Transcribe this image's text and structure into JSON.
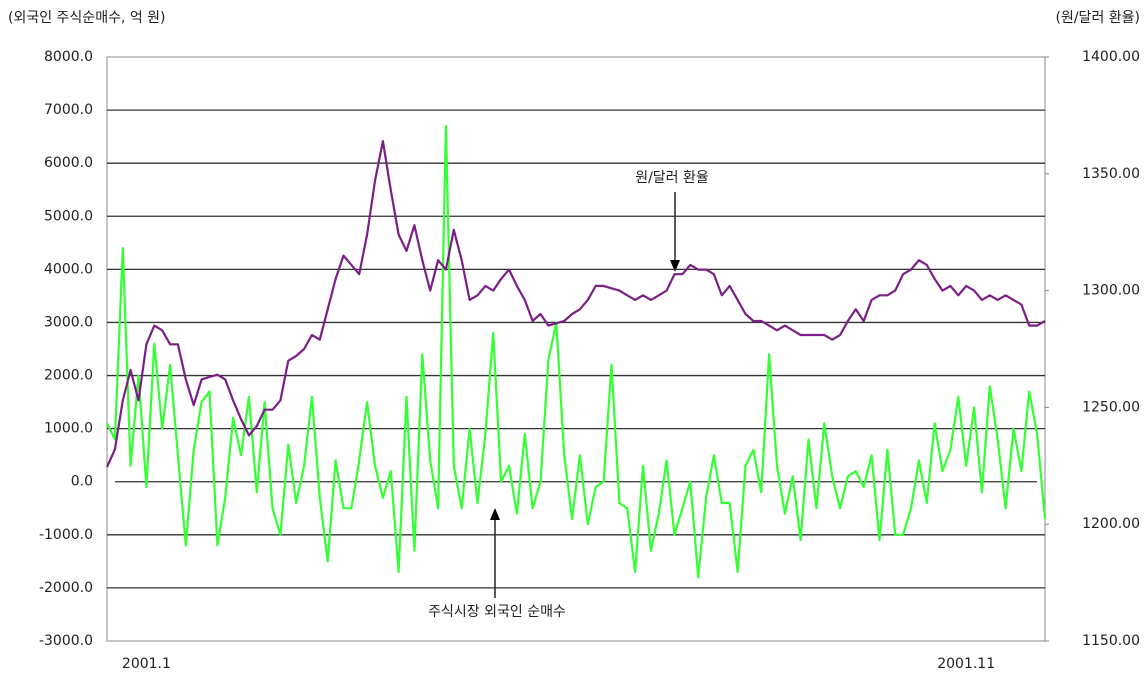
{
  "chart_data": {
    "type": "line",
    "y_label": "(외국인 주식순매수, 억 원)",
    "y2_label": "(원/달러 환율)",
    "annotations": [
      "원/달러 환율",
      "주식시장 외국인 순매수"
    ],
    "categories": [
      null,
      null,
      null,
      null,
      null,
      "2001.1",
      null,
      null,
      null,
      null,
      null,
      null,
      null,
      null,
      null,
      null,
      null,
      null,
      null,
      null,
      null,
      null,
      null,
      null,
      null,
      null,
      null,
      null,
      null,
      null,
      null,
      null,
      null,
      null,
      null,
      null,
      null,
      null,
      null,
      null,
      null,
      null,
      null,
      null,
      null,
      null,
      null,
      null,
      null,
      null,
      null,
      null,
      null,
      null,
      null,
      null,
      null,
      null,
      null,
      null,
      null,
      null,
      null,
      null,
      null,
      null,
      null,
      null,
      null,
      null,
      null,
      null,
      null,
      null,
      null,
      null,
      null,
      null,
      null,
      null,
      null,
      null,
      null,
      null,
      null,
      null,
      null,
      null,
      null,
      null,
      null,
      null,
      null,
      null,
      null,
      null,
      null,
      null,
      null,
      null,
      null,
      null,
      null,
      null,
      null,
      null,
      null,
      null,
      null,
      "2001.11",
      null,
      null,
      null,
      null,
      null,
      null,
      null,
      null,
      null,
      null
    ],
    "ylim": [
      -3000,
      8000
    ],
    "yticks": [
      {
        "value": -3000,
        "label": "-3000.0"
      },
      {
        "value": -2000,
        "label": "-2000.0"
      },
      {
        "value": -1000,
        "label": "-1000.0"
      },
      {
        "value": 0,
        "label": "0.0"
      },
      {
        "value": 1000,
        "label": "1000.0"
      },
      {
        "value": 2000,
        "label": "2000.0"
      },
      {
        "value": 3000,
        "label": "3000.0"
      },
      {
        "value": 4000,
        "label": "4000.0"
      },
      {
        "value": 5000,
        "label": "5000.0"
      },
      {
        "value": 6000,
        "label": "6000.0"
      },
      {
        "value": 7000,
        "label": "7000.0"
      },
      {
        "value": 8000,
        "label": "8000.0"
      }
    ],
    "y2lim": [
      1150,
      1400
    ],
    "y2ticks": [
      {
        "value": 1150,
        "label": "1150.00"
      },
      {
        "value": 1200,
        "label": "1200.00"
      },
      {
        "value": 1250,
        "label": "1250.00"
      },
      {
        "value": 1300,
        "label": "1300.00"
      },
      {
        "value": 1350,
        "label": "1350.00"
      },
      {
        "value": 1400,
        "label": "1400.00"
      }
    ],
    "grid": true,
    "series": [
      {
        "name": "주식시장 외국인 순매수",
        "color": "#33ff33",
        "values": [
          1100,
          800,
          4400,
          300,
          2000,
          -100,
          2600,
          1000,
          2200,
          500,
          -1200,
          600,
          1500,
          1700,
          -1200,
          -300,
          1200,
          500,
          1600,
          -200,
          1500,
          -500,
          -1000,
          700,
          -400,
          300,
          1600,
          -300,
          -1500,
          400,
          -500,
          -500,
          400,
          1500,
          300,
          -300,
          200,
          -1700,
          1600,
          -1300,
          2400,
          400,
          -500,
          6700,
          300,
          -500,
          1000,
          -400,
          900,
          2800,
          0,
          300,
          -600,
          900,
          -500,
          0,
          2300,
          3000,
          500,
          -700,
          500,
          -800,
          -100,
          0,
          2200,
          -400,
          -500,
          -1700,
          300,
          -1300,
          -600,
          400,
          -1000,
          -500,
          0,
          -1800,
          -300,
          500,
          -400,
          -400,
          -1700,
          300,
          600,
          -200,
          2400,
          300,
          -600,
          100,
          -1100,
          800,
          -500,
          1100,
          100,
          -500,
          100,
          200,
          -100,
          500,
          -1100,
          600,
          -1000,
          -1000,
          -500,
          400,
          -400,
          1100,
          200,
          600,
          1600,
          300,
          1400,
          -200,
          1800,
          800,
          -500,
          1000,
          200,
          1700,
          900,
          -700
        ]
      },
      {
        "name": "원/달러 환율",
        "color": "#7b1f86",
        "axis": "y2",
        "values": [
          1224.5,
          1232,
          1253,
          1266,
          1253,
          1277,
          1285,
          1283,
          1277,
          1277,
          1262,
          1251,
          1262,
          1263,
          1264,
          1262,
          1253,
          1245,
          1238,
          1242,
          1249,
          1249,
          1253,
          1270,
          1272,
          1275,
          1281,
          1279,
          1292,
          1305,
          1315,
          1311,
          1307,
          1324,
          1347,
          1364,
          1343,
          1324,
          1317,
          1328,
          1313,
          1300,
          1313,
          1309,
          1326,
          1313,
          1296,
          1298,
          1302,
          1300,
          1305,
          1309,
          1302,
          1296,
          1287,
          1290,
          1285,
          1286,
          1287,
          1290,
          1292,
          1296,
          1302,
          1302,
          1301,
          1300,
          1298,
          1296,
          1298,
          1296,
          1298,
          1300,
          1307,
          1307,
          1311,
          1309,
          1309,
          1307,
          1298,
          1302,
          1296,
          1290,
          1287,
          1287,
          1285,
          1283,
          1285,
          1283,
          1281,
          1281,
          1281,
          1281,
          1279,
          1281,
          1287,
          1292,
          1287,
          1296,
          1298,
          1298,
          1300,
          1307,
          1309,
          1313,
          1311,
          1305,
          1300,
          1302,
          1298,
          1302,
          1300,
          1296,
          1298,
          1296,
          1298,
          1296,
          1294,
          1285,
          1285,
          1287
        ]
      }
    ]
  }
}
